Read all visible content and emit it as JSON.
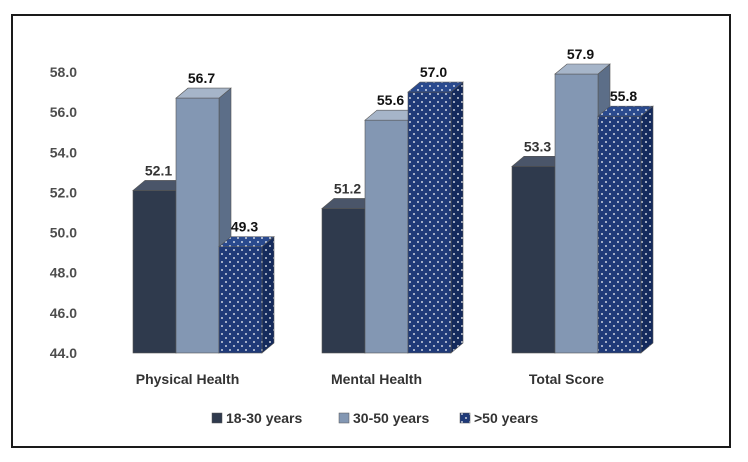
{
  "chart_data": {
    "type": "bar",
    "categories": [
      "Physical Health",
      "Mental Health",
      "Total Score"
    ],
    "series": [
      {
        "name": "18-30 years",
        "values": [
          52.1,
          51.2,
          53.3
        ],
        "color": "#2f3a4d"
      },
      {
        "name": "30-50 years",
        "values": [
          56.7,
          55.6,
          57.9
        ],
        "color": "#8397b3"
      },
      {
        "name": ">50 years",
        "values": [
          49.3,
          57.0,
          55.8
        ],
        "color": "#1f3a78",
        "pattern": "dotted"
      }
    ],
    "ylim": [
      44.0,
      58.0
    ],
    "yticks": [
      "44.0",
      "46.0",
      "48.0",
      "50.0",
      "52.0",
      "54.0",
      "56.0",
      "58.0"
    ],
    "title": "",
    "xlabel": "",
    "ylabel": "",
    "grid": false,
    "legend": "bottom",
    "style": "3d-bar"
  }
}
